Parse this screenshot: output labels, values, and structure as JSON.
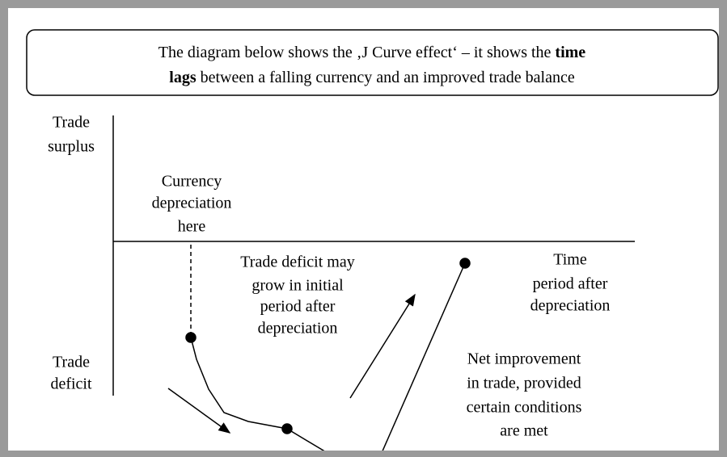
{
  "header": {
    "segments": [
      "The diagram below shows the ‚J Curve effect‘ – it shows the ",
      "time",
      "lags",
      " between a falling currency and an improved trade balance"
    ]
  },
  "labels": {
    "trade_surplus": [
      "Trade",
      "surplus"
    ],
    "currency_depreciation": [
      "Currency",
      "depreciation",
      "here"
    ],
    "deficit_may_grow": [
      "Trade deficit may",
      "grow in initial",
      "period after",
      "depreciation"
    ],
    "time_period": [
      "Time",
      "period after",
      "depreciation"
    ],
    "trade_deficit": [
      "Trade",
      "deficit"
    ],
    "net_improvement": [
      "Net improvement",
      "in trade, provided",
      "certain conditions",
      "are met"
    ]
  }
}
